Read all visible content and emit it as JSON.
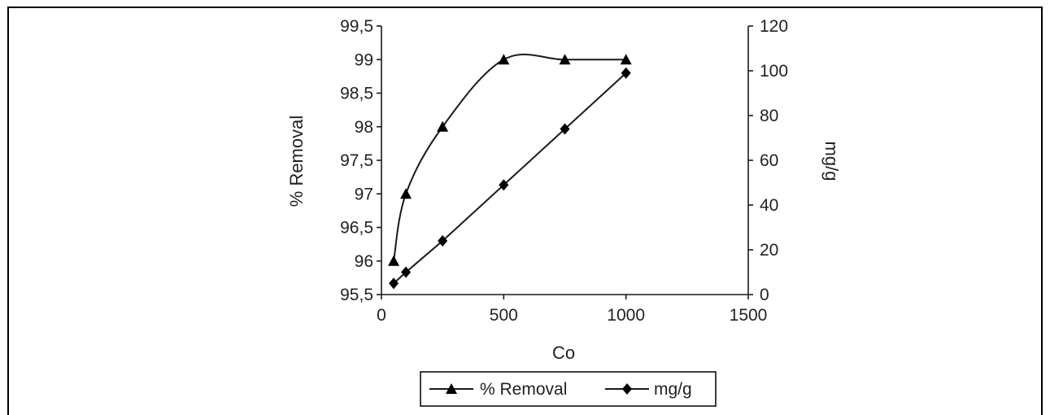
{
  "chart_data": {
    "type": "line",
    "xlabel": "Co",
    "ylabel_left": "% Removal",
    "ylabel_right": "mg/g",
    "x_ticks": [
      "0",
      "500",
      "1000",
      "1500"
    ],
    "y_left_ticks": [
      "95,5",
      "96",
      "96,5",
      "97",
      "97,5",
      "98",
      "98,5",
      "99",
      "99,5"
    ],
    "y_right_ticks": [
      "0",
      "20",
      "40",
      "60",
      "80",
      "100",
      "120"
    ],
    "xlim": [
      0,
      1500
    ],
    "ylim_left": [
      95.5,
      99.5
    ],
    "ylim_right": [
      0,
      120
    ],
    "series": [
      {
        "name": "% Removal",
        "axis": "left",
        "marker": "triangle",
        "smooth": true,
        "x": [
          50,
          100,
          250,
          500,
          750,
          1000
        ],
        "values": [
          96,
          97,
          98,
          99,
          99,
          99
        ]
      },
      {
        "name": "mg/g",
        "axis": "right",
        "marker": "diamond",
        "smooth": false,
        "x": [
          50,
          100,
          250,
          500,
          750,
          1000
        ],
        "values": [
          5,
          10,
          24,
          49,
          74,
          99
        ]
      }
    ],
    "legend_position": "bottom",
    "grid": false,
    "line_color": "#1a1a1a"
  }
}
